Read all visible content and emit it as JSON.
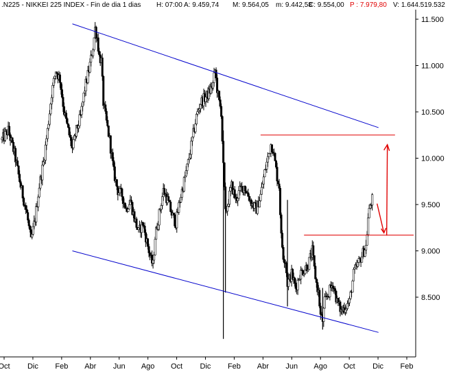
{
  "header": {
    "ticker": ".N225 - NIKKEI 225 INDEX - Fin de dia 1 dias",
    "time": "H: 07:00",
    "open": "A: 9.459,74",
    "high": "M: 9.564,05",
    "low": "m: 9.442,58",
    "close": "C: 9.554,00",
    "prev": "P : 7.979,80",
    "volume": "V: 1.644.519.532"
  },
  "colors": {
    "candle": "#000000",
    "trend_channel": "#0000cc",
    "resistance": "#e00000",
    "annotation_arrow": "#e00000",
    "axis": "#000000"
  },
  "chart_data": {
    "type": "candlestick",
    "title": ".N225 - NIKKEI 225 INDEX",
    "xlabel": "",
    "ylabel": "",
    "x_tick_labels": [
      "Oct",
      "Dic",
      "Feb",
      "Abr",
      "Jun",
      "Ago",
      "Oct",
      "Dic",
      "Feb",
      "Abr",
      "Jun",
      "Ago",
      "Oct",
      "Dic",
      "Feb"
    ],
    "y_tick_labels": [
      "11.500",
      "11.000",
      "10.500",
      "10.000",
      "9.500",
      "9.000",
      "8.500"
    ],
    "y_ticks": [
      11500,
      11000,
      10500,
      10000,
      9500,
      9000,
      8500
    ],
    "ylim": [
      8000,
      11800
    ],
    "grid": false,
    "price_path": [
      [
        0,
        10200
      ],
      [
        3,
        10300
      ],
      [
        6,
        10050
      ],
      [
        9,
        9700
      ],
      [
        12,
        9400
      ],
      [
        14,
        9100
      ],
      [
        16,
        9350
      ],
      [
        18,
        9700
      ],
      [
        20,
        9950
      ],
      [
        22,
        10300
      ],
      [
        24,
        10700
      ],
      [
        26,
        10950
      ],
      [
        28,
        10850
      ],
      [
        30,
        10500
      ],
      [
        32,
        10300
      ],
      [
        34,
        10100
      ],
      [
        36,
        10300
      ],
      [
        38,
        10450
      ],
      [
        40,
        10750
      ],
      [
        42,
        10950
      ],
      [
        44,
        11200
      ],
      [
        45,
        11400
      ],
      [
        46,
        11300
      ],
      [
        47,
        11100
      ],
      [
        48,
        11050
      ],
      [
        49,
        10600
      ],
      [
        50,
        10450
      ],
      [
        52,
        10200
      ],
      [
        54,
        9850
      ],
      [
        56,
        9650
      ],
      [
        58,
        9600
      ],
      [
        60,
        9450
      ],
      [
        62,
        9550
      ],
      [
        64,
        9350
      ],
      [
        66,
        9200
      ],
      [
        68,
        9300
      ],
      [
        70,
        9100
      ],
      [
        72,
        8900
      ],
      [
        73,
        8850
      ],
      [
        74,
        9150
      ],
      [
        76,
        9400
      ],
      [
        78,
        9650
      ],
      [
        80,
        9550
      ],
      [
        82,
        9400
      ],
      [
        84,
        9300
      ],
      [
        86,
        9550
      ],
      [
        88,
        9750
      ],
      [
        90,
        9950
      ],
      [
        92,
        10200
      ],
      [
        94,
        10450
      ],
      [
        96,
        10600
      ],
      [
        98,
        10650
      ],
      [
        100,
        10700
      ],
      [
        102,
        10800
      ],
      [
        103,
        10950
      ],
      [
        104,
        10750
      ],
      [
        105,
        10600
      ],
      [
        106,
        10500
      ],
      [
        107,
        9900
      ],
      [
        108,
        9400
      ],
      [
        109,
        9500
      ],
      [
        111,
        9700
      ],
      [
        113,
        9550
      ],
      [
        115,
        9650
      ],
      [
        117,
        9700
      ],
      [
        119,
        9600
      ],
      [
        121,
        9500
      ],
      [
        123,
        9450
      ],
      [
        125,
        9600
      ],
      [
        127,
        9850
      ],
      [
        129,
        10050
      ],
      [
        130,
        10150
      ],
      [
        131,
        10100
      ],
      [
        132,
        9950
      ],
      [
        133,
        9800
      ],
      [
        134,
        9700
      ],
      [
        135,
        9150
      ],
      [
        136,
        8950
      ],
      [
        137,
        8900
      ],
      [
        138,
        8650
      ],
      [
        140,
        8750
      ],
      [
        142,
        8600
      ],
      [
        144,
        8750
      ],
      [
        146,
        8800
      ],
      [
        148,
        8850
      ],
      [
        150,
        9000
      ],
      [
        151,
        8800
      ],
      [
        152,
        8650
      ],
      [
        153,
        8550
      ],
      [
        154,
        8300
      ],
      [
        155,
        8250
      ],
      [
        156,
        8450
      ],
      [
        158,
        8550
      ],
      [
        160,
        8650
      ],
      [
        162,
        8450
      ],
      [
        164,
        8350
      ],
      [
        166,
        8400
      ],
      [
        168,
        8450
      ],
      [
        169,
        8600
      ],
      [
        170,
        8750
      ],
      [
        172,
        8850
      ],
      [
        174,
        8950
      ],
      [
        176,
        9050
      ],
      [
        177,
        9350
      ],
      [
        178,
        9500
      ],
      [
        179,
        9554
      ]
    ],
    "spikes": [
      {
        "x": 107,
        "low": 8050,
        "high": 10300
      },
      {
        "x": 108,
        "low": 8550,
        "high": 9600
      },
      {
        "x": 138,
        "low": 8400,
        "high": 9550
      },
      {
        "x": 155,
        "low": 8150,
        "high": 8600
      }
    ],
    "trendlines": [
      {
        "name": "channel-top",
        "x1": 34,
        "y1": 11450,
        "x2": 182,
        "y2": 10330
      },
      {
        "name": "channel-bottom",
        "x1": 34,
        "y1": 9000,
        "x2": 182,
        "y2": 8120
      }
    ],
    "horizontal_lines": [
      {
        "name": "resistance-upper",
        "y": 10250,
        "x1": 125,
        "x2": 190
      },
      {
        "name": "resistance-lower",
        "y": 9170,
        "x1": 146,
        "x2": 199
      }
    ]
  }
}
